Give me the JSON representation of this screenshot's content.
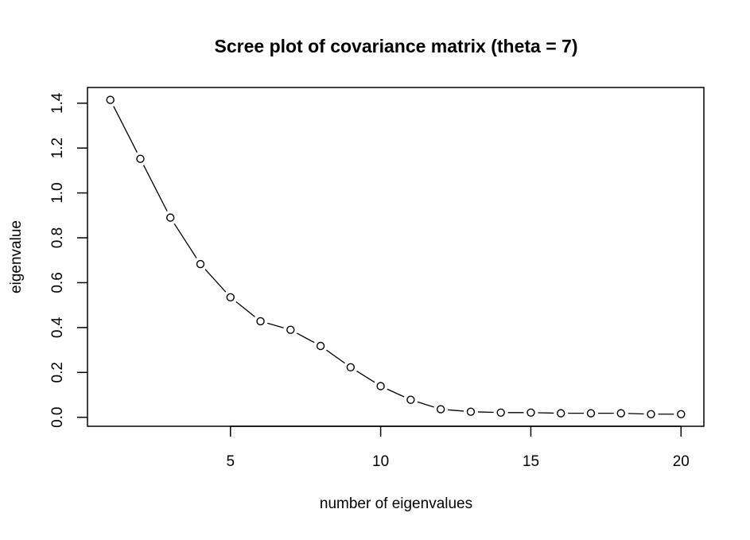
{
  "chart_data": {
    "type": "line",
    "title": "Scree plot of covariance matrix (theta = 7)",
    "xlabel": "number of eigenvalues",
    "ylabel": "eigenvalue",
    "x": [
      1,
      2,
      3,
      4,
      5,
      6,
      7,
      8,
      9,
      10,
      11,
      12,
      13,
      14,
      15,
      16,
      17,
      18,
      19,
      20
    ],
    "y": [
      1.415,
      1.152,
      0.89,
      0.683,
      0.535,
      0.428,
      0.39,
      0.318,
      0.223,
      0.139,
      0.078,
      0.036,
      0.025,
      0.021,
      0.021,
      0.018,
      0.018,
      0.018,
      0.014,
      0.014
    ],
    "xlim": [
      0.24,
      20.76
    ],
    "ylim": [
      -0.04,
      1.47
    ],
    "xticks": [
      "5",
      "10",
      "15",
      "20"
    ],
    "yticks": [
      "0.0",
      "0.2",
      "0.4",
      "0.6",
      "0.8",
      "1.0",
      "1.2",
      "1.4"
    ],
    "marker": "open-circle",
    "line_style": "points-and-lines",
    "grid": false,
    "colors": {
      "line": "#000000",
      "background": "#ffffff"
    }
  }
}
